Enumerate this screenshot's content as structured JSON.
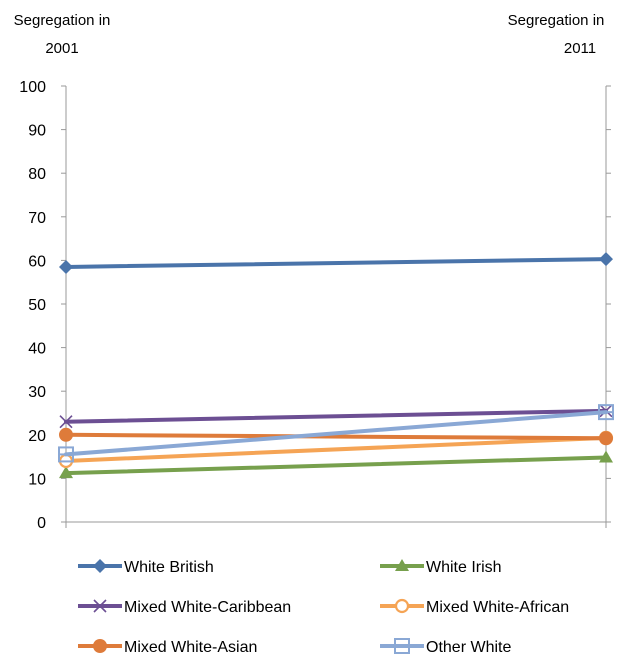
{
  "chart_data": {
    "type": "line",
    "x": [
      "2001",
      "2011"
    ],
    "left_axis_title": [
      "Segregation in",
      "2001"
    ],
    "right_axis_title": [
      "Segregation in",
      "2011"
    ],
    "ylim": [
      0,
      100
    ],
    "yticks": [
      0,
      10,
      20,
      30,
      40,
      50,
      60,
      70,
      80,
      90,
      100
    ],
    "grid": false,
    "legend_position": "bottom",
    "series": [
      {
        "name": "White British",
        "values": [
          58.5,
          60.3
        ],
        "color": "#4a74aa",
        "marker": "diamond"
      },
      {
        "name": "White Irish",
        "values": [
          11.2,
          14.8
        ],
        "color": "#77a04d",
        "marker": "triangle"
      },
      {
        "name": "Mixed White-Caribbean",
        "values": [
          23.0,
          25.5
        ],
        "color": "#6c4f93",
        "marker": "x"
      },
      {
        "name": "Mixed White-African",
        "values": [
          14.0,
          19.3
        ],
        "color": "#f5a455",
        "marker": "open-circle"
      },
      {
        "name": "Mixed White-Asian",
        "values": [
          20.0,
          19.2
        ],
        "color": "#de7b3a",
        "marker": "circle"
      },
      {
        "name": "Other White",
        "values": [
          15.5,
          25.2
        ],
        "color": "#8aa8d5",
        "marker": "open-square"
      }
    ]
  }
}
